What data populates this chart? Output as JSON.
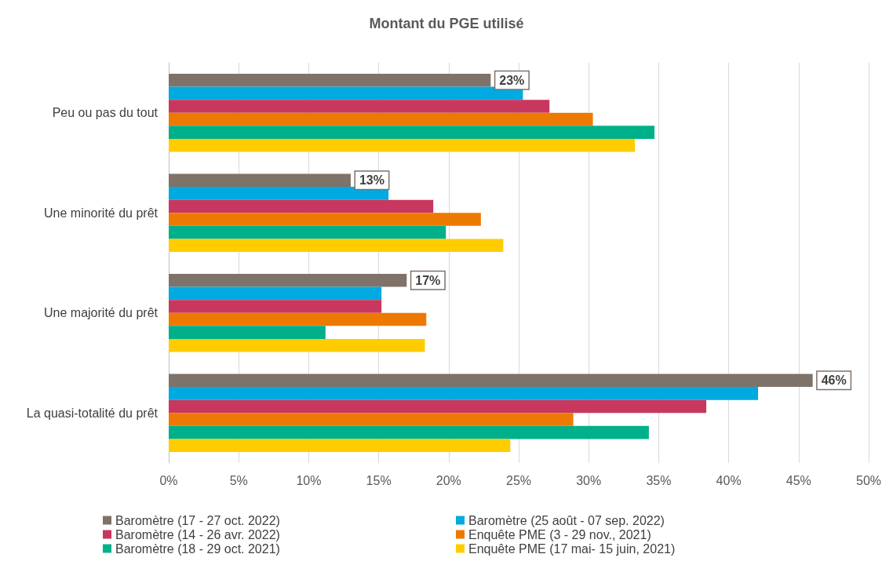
{
  "chart_data": {
    "type": "bar",
    "orientation": "horizontal",
    "title": "Montant du PGE utilisé",
    "categories": [
      "Peu ou pas du tout",
      "Une minorité du prêt",
      "Une majorité du prêt",
      "La quasi-totalité du prêt"
    ],
    "series": [
      {
        "name": "Baromètre (17 - 27 oct. 2022)",
        "color": "#7f7268",
        "values": [
          23,
          13,
          17,
          46
        ],
        "value_labels": [
          "23%",
          "13%",
          "17%",
          "46%"
        ]
      },
      {
        "name": "Baromètre (25 août - 07 sep. 2022)",
        "color": "#00a9e0",
        "values": [
          25.3,
          15.7,
          15.2,
          42.1
        ]
      },
      {
        "name": "Baromètre (14 - 26 avr. 2022)",
        "color": "#c8385e",
        "values": [
          27.2,
          18.9,
          15.2,
          38.4
        ]
      },
      {
        "name": "Enquête PME (3 - 29 nov., 2021)",
        "color": "#ed7a00",
        "values": [
          30.3,
          22.3,
          18.4,
          28.9
        ]
      },
      {
        "name": "Baromètre (18 - 29 oct. 2021)",
        "color": "#00b08a",
        "values": [
          34.7,
          19.8,
          11.2,
          34.3
        ]
      },
      {
        "name": "Enquête PME (17 mai- 15 juin, 2021)",
        "color": "#ffcc00",
        "values": [
          33.3,
          23.9,
          18.3,
          24.4
        ]
      }
    ],
    "xlim": [
      0,
      50
    ],
    "xticks": [
      {
        "value": 0,
        "label": "0%"
      },
      {
        "value": 5,
        "label": "5%"
      },
      {
        "value": 10,
        "label": "10%"
      },
      {
        "value": 15,
        "label": "15%"
      },
      {
        "value": 20,
        "label": "20%"
      },
      {
        "value": 25,
        "label": "25%"
      },
      {
        "value": 30,
        "label": "30%"
      },
      {
        "value": 35,
        "label": "35%"
      },
      {
        "value": 40,
        "label": "40%"
      },
      {
        "value": 45,
        "label": "45%"
      },
      {
        "value": 50,
        "label": "50%"
      }
    ],
    "grid": "x",
    "legend": "bottom"
  }
}
